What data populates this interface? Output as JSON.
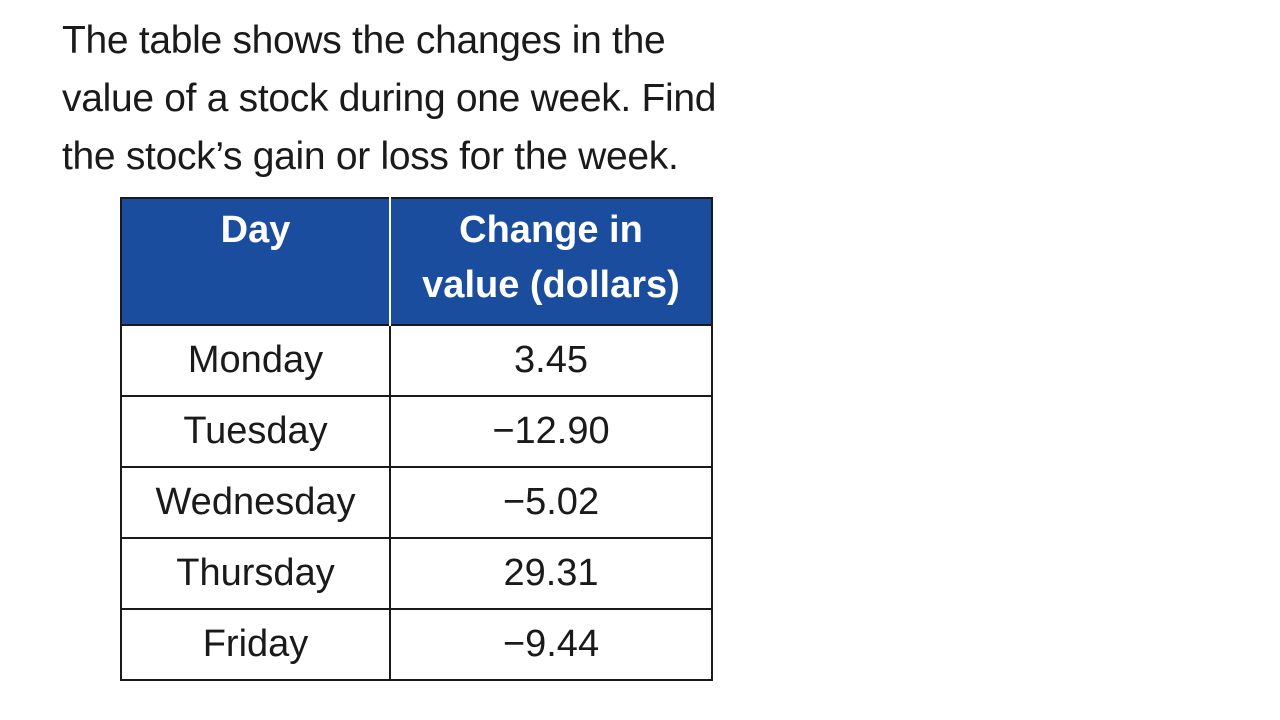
{
  "problem": {
    "lines": [
      "The table shows the changes in the",
      "value of a stock during one week. Find",
      "the stock’s gain or loss for the week."
    ]
  },
  "table": {
    "headers": {
      "day": "Day",
      "change_line1": "Change in",
      "change_line2": "value (dollars)"
    },
    "rows": [
      {
        "day": "Monday",
        "change": "3.45"
      },
      {
        "day": "Tuesday",
        "change": "−12.90"
      },
      {
        "day": "Wednesday",
        "change": "−5.02"
      },
      {
        "day": "Thursday",
        "change": "29.31"
      },
      {
        "day": "Friday",
        "change": "−9.44"
      }
    ],
    "colors": {
      "header_background": "#1a4d9e",
      "header_text": "#ffffff",
      "border": "#1a1a1a"
    }
  }
}
